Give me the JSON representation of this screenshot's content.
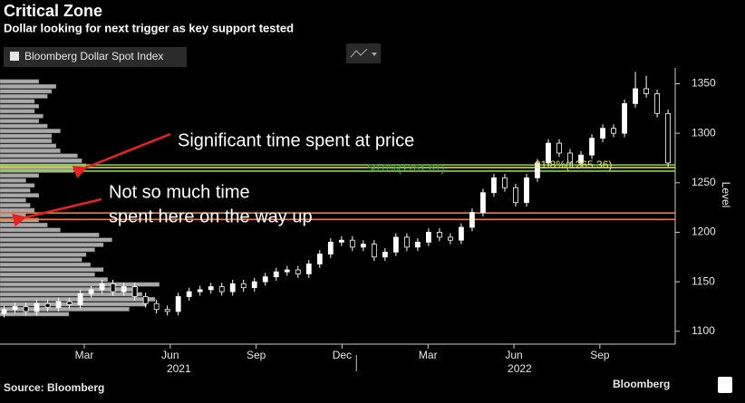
{
  "chart_data": {
    "type": "candlestick",
    "title": "Critical Zone",
    "subtitle": "Dollar looking for next trigger as key support tested",
    "legend": "Bloomberg Dollar Spot Index",
    "y_label": "Level",
    "source": "Source: Bloomberg",
    "brand": "Bloomberg",
    "annotations": [
      "Significant time spent at price",
      "Not so much time",
      "spent here on the way up"
    ],
    "x": [
      -0.8,
      -0.42,
      -0.04,
      0.34,
      0.72,
      1.1,
      1.48,
      1.86,
      2.24,
      2.62,
      3,
      3.38,
      3.76,
      4.14,
      4.52,
      4.9,
      5.28,
      5.66,
      6.04,
      6.42,
      6.8,
      7.18,
      7.56,
      7.94,
      8.32,
      8.7,
      9.08,
      9.46,
      9.84,
      10.22,
      10.6,
      10.98,
      11.36,
      11.74,
      12.12,
      12.5,
      12.88,
      13.26,
      13.64,
      14.02,
      14.4,
      14.78,
      15.16,
      15.54,
      15.92,
      16.3,
      16.68,
      17.06,
      17.44,
      17.82,
      18.2,
      18.58,
      18.96,
      19.34,
      19.72,
      20.1,
      20.48,
      20.86,
      21.24,
      21.62,
      22,
      22.38
    ],
    "open": [
      1118,
      1122,
      1125,
      1120,
      1128,
      1124,
      1130,
      1127,
      1138,
      1142,
      1148,
      1140,
      1145,
      1135,
      1128,
      1122,
      1120,
      1135,
      1140,
      1142,
      1145,
      1140,
      1148,
      1144,
      1150,
      1155,
      1160,
      1162,
      1158,
      1168,
      1178,
      1190,
      1192,
      1185,
      1188,
      1175,
      1180,
      1195,
      1185,
      1190,
      1200,
      1195,
      1192,
      1205,
      1220,
      1240,
      1255,
      1245,
      1230,
      1255,
      1270,
      1290,
      1280,
      1270,
      1278,
      1295,
      1305,
      1300,
      1330,
      1345,
      1340,
      1320
    ],
    "high": [
      1126,
      1129,
      1129,
      1132,
      1132,
      1134,
      1134,
      1142,
      1146,
      1152,
      1152,
      1149,
      1149,
      1139,
      1132,
      1126,
      1139,
      1144,
      1146,
      1149,
      1149,
      1152,
      1152,
      1154,
      1159,
      1164,
      1166,
      1166,
      1172,
      1182,
      1194,
      1196,
      1196,
      1192,
      1192,
      1184,
      1199,
      1199,
      1194,
      1204,
      1204,
      1199,
      1209,
      1224,
      1244,
      1259,
      1259,
      1249,
      1259,
      1274,
      1294,
      1294,
      1284,
      1282,
      1299,
      1309,
      1309,
      1334,
      1362,
      1358,
      1344,
      1324
    ],
    "low": [
      1114,
      1118,
      1116,
      1116,
      1120,
      1120,
      1123,
      1123,
      1134,
      1138,
      1136,
      1136,
      1131,
      1124,
      1118,
      1116,
      1116,
      1131,
      1136,
      1138,
      1136,
      1136,
      1140,
      1140,
      1146,
      1151,
      1156,
      1154,
      1154,
      1164,
      1174,
      1186,
      1181,
      1181,
      1171,
      1171,
      1176,
      1181,
      1181,
      1186,
      1191,
      1188,
      1188,
      1201,
      1216,
      1236,
      1241,
      1226,
      1226,
      1251,
      1266,
      1276,
      1266,
      1266,
      1274,
      1291,
      1296,
      1296,
      1326,
      1336,
      1316,
      1266
    ],
    "close": [
      1122,
      1125,
      1120,
      1128,
      1124,
      1130,
      1127,
      1138,
      1142,
      1148,
      1140,
      1145,
      1135,
      1128,
      1122,
      1120,
      1135,
      1140,
      1142,
      1145,
      1140,
      1148,
      1144,
      1150,
      1155,
      1160,
      1162,
      1158,
      1168,
      1178,
      1190,
      1192,
      1185,
      1188,
      1175,
      1180,
      1195,
      1185,
      1190,
      1200,
      1195,
      1192,
      1205,
      1220,
      1240,
      1255,
      1245,
      1230,
      1255,
      1270,
      1290,
      1280,
      1270,
      1278,
      1295,
      1305,
      1300,
      1330,
      1345,
      1340,
      1320,
      1270
    ],
    "up_color": "#ffffff",
    "down_color": "#000000",
    "xlim": [
      -0.943,
      22.63
    ],
    "xticks": [
      {
        "value": 2,
        "label": "Mar"
      },
      {
        "value": 5,
        "label": "Jun"
      },
      {
        "value": 8,
        "label": "Sep"
      },
      {
        "value": 11,
        "label": "Dec"
      },
      {
        "value": 14,
        "label": "Mar"
      },
      {
        "value": 17,
        "label": "Jun"
      },
      {
        "value": 20,
        "label": "Sep"
      }
    ],
    "year_ticks": [
      {
        "value": 5.3,
        "label": "2021"
      },
      {
        "value": 17.2,
        "label": "2022"
      }
    ],
    "year_boundary": 11.5,
    "ylim": [
      1087,
      1366
    ],
    "yticks": [
      1100,
      1150,
      1200,
      1250,
      1300,
      1350
    ],
    "profile": {
      "color": "#a9a9a9",
      "xlim": [
        0,
        200
      ],
      "bins": [
        1115,
        1120,
        1125,
        1130,
        1135,
        1140,
        1145,
        1150,
        1155,
        1160,
        1165,
        1170,
        1175,
        1180,
        1185,
        1190,
        1195,
        1200,
        1205,
        1210,
        1215,
        1220,
        1225,
        1230,
        1235,
        1240,
        1245,
        1250,
        1255,
        1260,
        1265,
        1270,
        1275,
        1280,
        1285,
        1290,
        1295,
        1300,
        1305,
        1310,
        1315,
        1320,
        1325,
        1330,
        1335,
        1340,
        1345,
        1350,
        1355
      ],
      "values": [
        80,
        150,
        170,
        180,
        165,
        160,
        185,
        125,
        110,
        120,
        105,
        95,
        100,
        110,
        120,
        130,
        115,
        70,
        55,
        45,
        30,
        40,
        35,
        30,
        45,
        35,
        40,
        30,
        45,
        85,
        100,
        95,
        90,
        70,
        65,
        60,
        60,
        70,
        55,
        45,
        50,
        40,
        45,
        40,
        55,
        60,
        65,
        45
      ]
    },
    "levels": [
      {
        "value": 1268,
        "color": "#8fd14f"
      },
      {
        "value": 1261.81,
        "color": "#8fd14f",
        "label": "50.0%(1261.81)",
        "label_color": "#3cb44b"
      },
      {
        "value": 1265.36,
        "color": "#d9d94a",
        "label": "61.8%(1265.36)",
        "label_color": "#e6e65c"
      },
      {
        "value": 1219.5,
        "color": "#f07a3c"
      },
      {
        "value": 1213,
        "color": "#f07a3c"
      }
    ]
  }
}
